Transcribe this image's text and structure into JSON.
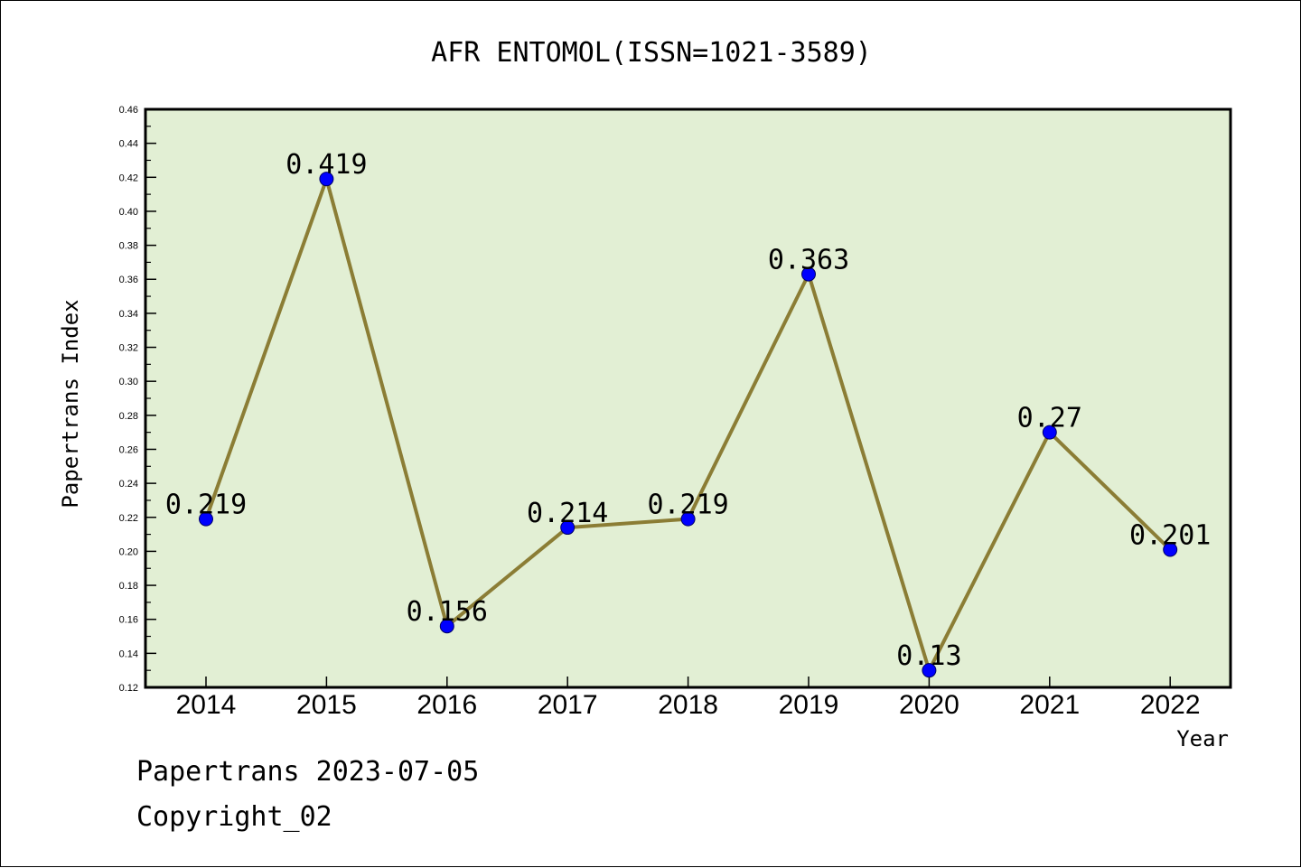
{
  "chart_data": {
    "type": "line",
    "title": "AFR ENTOMOL(ISSN=1021-3589)",
    "xlabel": "Year",
    "ylabel": "Papertrans Index",
    "categories": [
      "2014",
      "2015",
      "2016",
      "2017",
      "2018",
      "2019",
      "2020",
      "2021",
      "2022"
    ],
    "series": [
      {
        "values": [
          0.219,
          0.419,
          0.156,
          0.214,
          0.219,
          0.363,
          0.13,
          0.27,
          0.201
        ]
      }
    ],
    "data_labels": [
      "0.219",
      "0.419",
      "0.156",
      "0.214",
      "0.219",
      "0.363",
      "0.13",
      "0.27",
      "0.201"
    ],
    "ylim": [
      0.12,
      0.46
    ],
    "yticks": [
      "0.12",
      "0.14",
      "0.16",
      "0.18",
      "0.20",
      "0.22",
      "0.24",
      "0.26",
      "0.28",
      "0.30",
      "0.32",
      "0.34",
      "0.36",
      "0.38",
      "0.40",
      "0.42",
      "0.44",
      "0.46"
    ],
    "grid": false,
    "legend": "none",
    "colors": {
      "plot_background": "#e2efd4",
      "line": "#8b7d35",
      "marker": "#0000ff",
      "marker_edge": "#000066"
    }
  },
  "footer": {
    "line1": "Papertrans 2023-07-05",
    "line2": "Copyright_02"
  }
}
